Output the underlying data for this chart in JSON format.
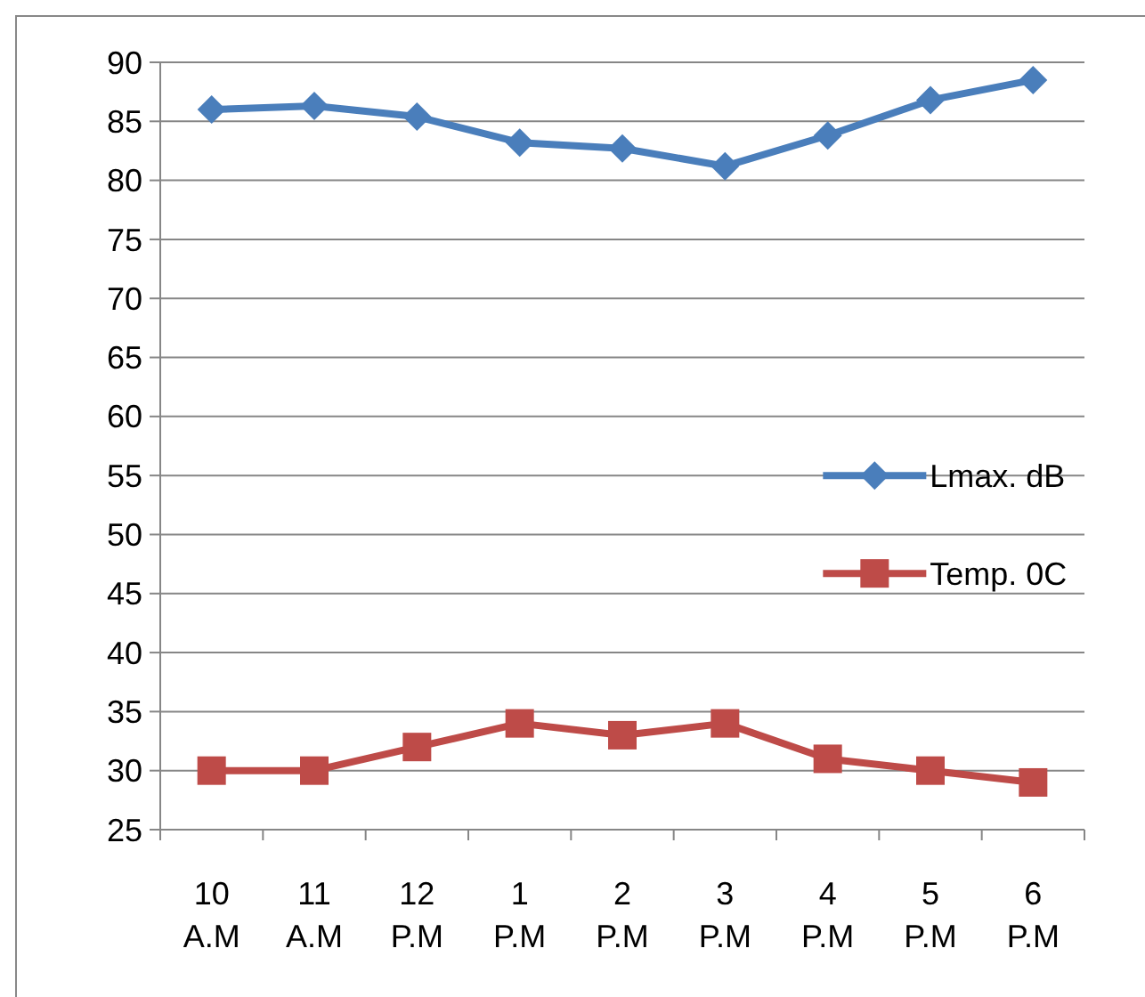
{
  "chart_data": {
    "type": "line",
    "categories": [
      "10 A.M",
      "11 A.M",
      "12 P.M",
      "1 P.M",
      "2 P.M",
      "3 P.M",
      "4 P.M",
      "5 P.M",
      "6 P.M"
    ],
    "series": [
      {
        "name": "Lmax. dB",
        "color": "#4a7ebb",
        "marker": "diamond",
        "values": [
          86,
          86.3,
          85.4,
          83.2,
          82.7,
          81.2,
          83.8,
          86.8,
          88.5
        ]
      },
      {
        "name": "Temp. 0C",
        "color": "#be4b48",
        "marker": "square",
        "values": [
          30,
          30,
          32,
          34,
          33,
          34,
          31,
          30,
          29
        ]
      }
    ],
    "ylim": [
      25,
      90
    ],
    "yticks": [
      25,
      30,
      35,
      40,
      45,
      50,
      55,
      60,
      65,
      70,
      75,
      80,
      85,
      90
    ],
    "grid": "y",
    "legend": "right"
  }
}
